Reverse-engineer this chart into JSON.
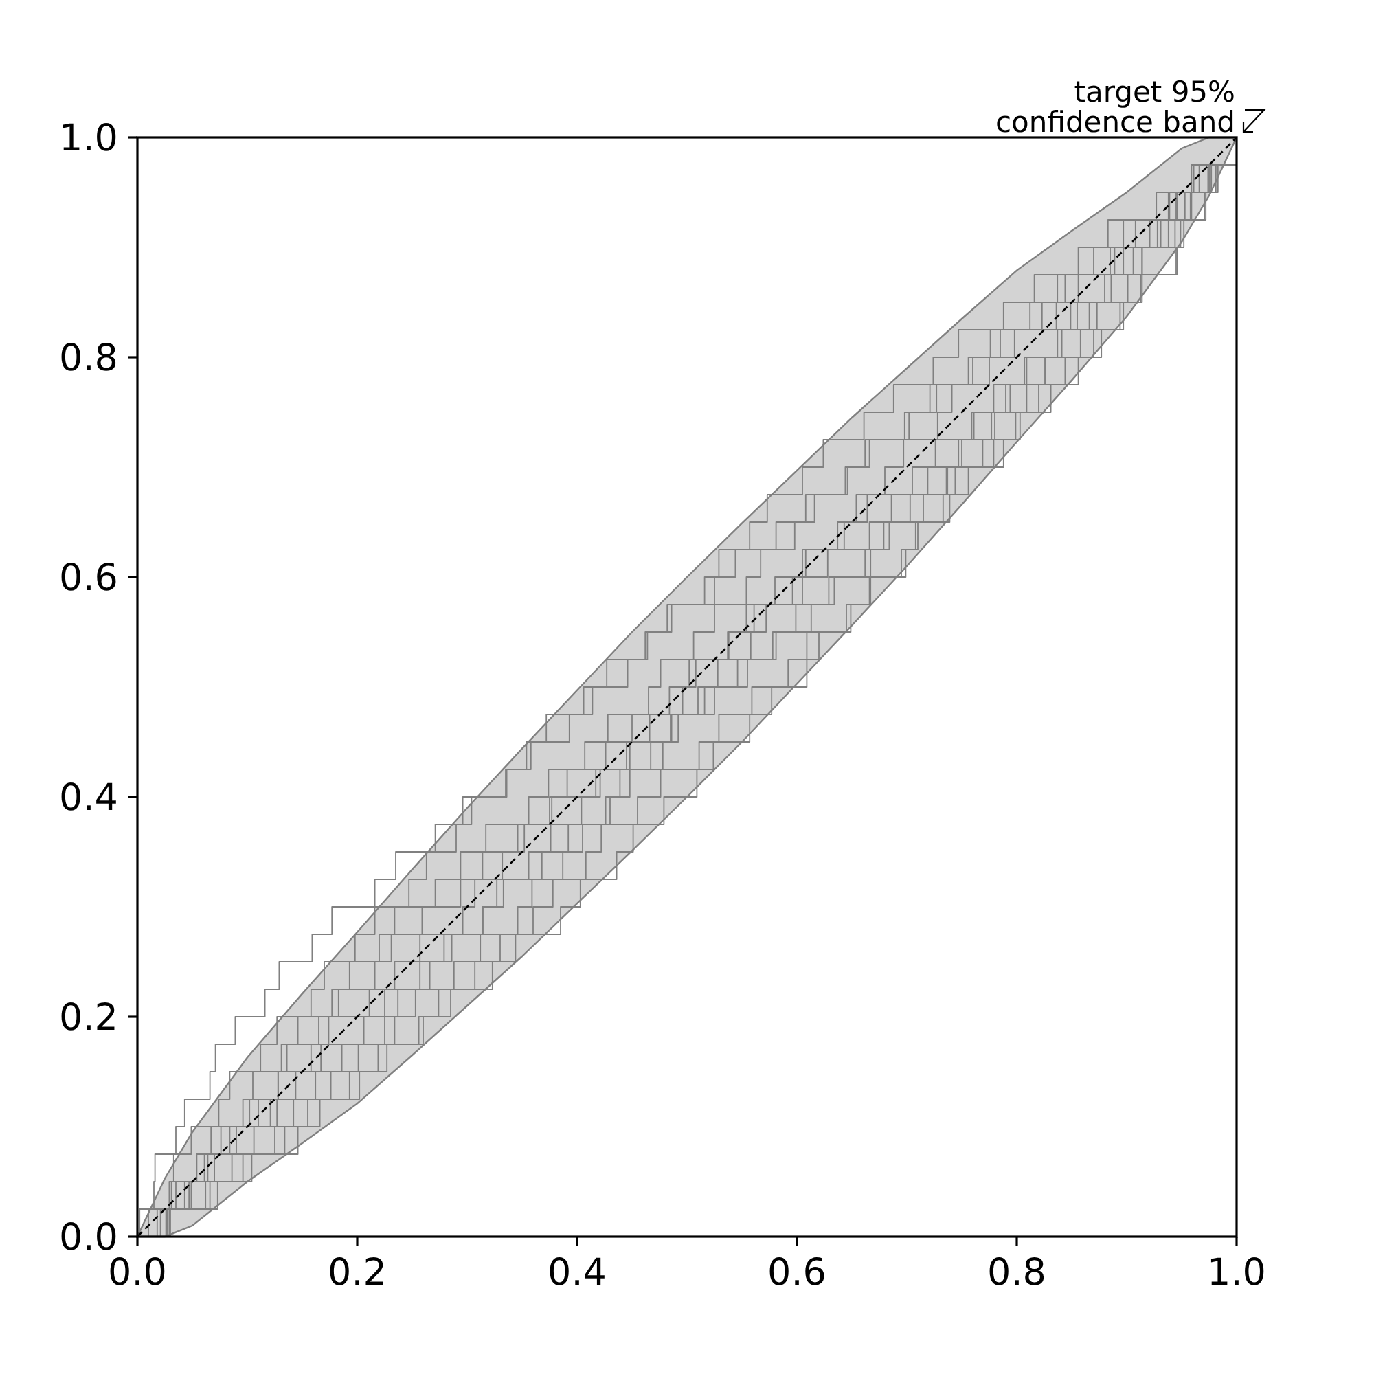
{
  "chart_data": {
    "type": "step",
    "xlim": [
      0,
      1
    ],
    "ylim": [
      0,
      1
    ],
    "xticks": [
      {
        "value": 0,
        "label": "0.0"
      },
      0.2,
      0.4,
      0.6,
      0.8,
      {
        "value": 1,
        "label": "1.0"
      }
    ],
    "yticks": [
      {
        "value": 0,
        "label": "0.0"
      },
      0.2,
      0.4,
      0.6,
      0.8,
      {
        "value": 1,
        "label": "1.0"
      }
    ],
    "annotations": [
      {
        "text": "target 95%\nconfidence band",
        "x": 1,
        "y": 1
      }
    ],
    "series": [
      {
        "type": "line",
        "color": "#000000",
        "line_style": "dashed",
        "x": [
          0,
          0.025,
          0.05,
          0.1,
          0.15,
          0.2,
          0.25,
          0.3,
          0.35,
          0.4,
          0.45,
          0.5,
          0.55,
          0.6,
          0.65,
          0.7,
          0.75,
          0.8,
          0.85,
          0.9,
          0.95,
          0.975,
          1
        ],
        "values": [
          0,
          0.025,
          0.05,
          0.1,
          0.15,
          0.2,
          0.25,
          0.3,
          0.35,
          0.4,
          0.45,
          0.5,
          0.55,
          0.6,
          0.65,
          0.7,
          0.75,
          0.8,
          0.85,
          0.9,
          0.95,
          0.975,
          1
        ],
        "lower": [
          0,
          0,
          0.01,
          0.05,
          0.085,
          0.121,
          0.165,
          0.21,
          0.255,
          0.303,
          0.351,
          0.4,
          0.45,
          0.503,
          0.556,
          0.61,
          0.666,
          0.723,
          0.779,
          0.837,
          0.905,
          0.947,
          1
        ],
        "upper": [
          0,
          0.053,
          0.095,
          0.163,
          0.221,
          0.277,
          0.334,
          0.39,
          0.444,
          0.497,
          0.55,
          0.6,
          0.649,
          0.697,
          0.745,
          0.79,
          0.835,
          0.879,
          0.915,
          0.95,
          0.99,
          1,
          1
        ]
      },
      {
        "color": "#808080",
        "x": [
          0,
          0.002,
          0.015,
          0.016,
          0.035,
          0.043,
          0.066,
          0.071,
          0.089,
          0.116,
          0.129,
          0.159,
          0.177,
          0.216,
          0.235,
          0.271,
          0.296,
          0.335,
          0.358,
          0.393,
          0.414,
          0.446,
          0.464,
          0.482,
          0.516,
          0.529,
          0.557,
          0.573,
          0.605,
          0.624,
          0.661,
          0.688,
          0.724,
          0.747,
          0.788,
          0.816,
          0.856,
          0.883,
          0.927,
          0.959,
          1
        ],
        "values": [
          0,
          0.025,
          0.05,
          0.075,
          0.1,
          0.125,
          0.15,
          0.175,
          0.2,
          0.225,
          0.25,
          0.275,
          0.3,
          0.325,
          0.35,
          0.375,
          0.4,
          0.425,
          0.45,
          0.475,
          0.5,
          0.525,
          0.55,
          0.575,
          0.6,
          0.625,
          0.65,
          0.675,
          0.7,
          0.725,
          0.75,
          0.775,
          0.8,
          0.825,
          0.85,
          0.875,
          0.9,
          0.925,
          0.95,
          0.975,
          1
        ]
      },
      {
        "color": "#808080",
        "x": [
          0,
          0.01,
          0.031,
          0.033,
          0.049,
          0.074,
          0.084,
          0.112,
          0.127,
          0.158,
          0.17,
          0.198,
          0.216,
          0.247,
          0.263,
          0.29,
          0.304,
          0.336,
          0.354,
          0.372,
          0.406,
          0.427,
          0.462,
          0.486,
          0.525,
          0.544,
          0.581,
          0.608,
          0.644,
          0.662,
          0.698,
          0.721,
          0.756,
          0.776,
          0.812,
          0.837,
          0.87,
          0.897,
          0.938,
          0.961,
          1
        ],
        "values": [
          0,
          0.025,
          0.05,
          0.075,
          0.1,
          0.125,
          0.15,
          0.175,
          0.2,
          0.225,
          0.25,
          0.275,
          0.3,
          0.325,
          0.35,
          0.375,
          0.4,
          0.425,
          0.45,
          0.475,
          0.5,
          0.525,
          0.55,
          0.575,
          0.6,
          0.625,
          0.65,
          0.675,
          0.7,
          0.725,
          0.75,
          0.775,
          0.8,
          0.825,
          0.85,
          0.875,
          0.9,
          0.925,
          0.95,
          0.975,
          1
        ]
      },
      {
        "color": "#808080",
        "x": [
          0,
          0.021,
          0.029,
          0.054,
          0.067,
          0.096,
          0.105,
          0.131,
          0.146,
          0.177,
          0.193,
          0.22,
          0.234,
          0.271,
          0.294,
          0.317,
          0.356,
          0.374,
          0.407,
          0.428,
          0.465,
          0.476,
          0.506,
          0.525,
          0.554,
          0.567,
          0.598,
          0.616,
          0.646,
          0.666,
          0.702,
          0.727,
          0.76,
          0.785,
          0.823,
          0.844,
          0.885,
          0.908,
          0.946,
          0.966,
          1
        ],
        "values": [
          0,
          0.025,
          0.05,
          0.075,
          0.1,
          0.125,
          0.15,
          0.175,
          0.2,
          0.225,
          0.25,
          0.275,
          0.3,
          0.325,
          0.35,
          0.375,
          0.4,
          0.425,
          0.45,
          0.475,
          0.5,
          0.525,
          0.55,
          0.575,
          0.6,
          0.625,
          0.65,
          0.675,
          0.7,
          0.725,
          0.75,
          0.775,
          0.8,
          0.825,
          0.85,
          0.875,
          0.9,
          0.925,
          0.95,
          0.975,
          1
        ]
      },
      {
        "color": "#808080",
        "x": [
          0,
          0.026,
          0.035,
          0.061,
          0.076,
          0.11,
          0.128,
          0.158,
          0.174,
          0.211,
          0.234,
          0.257,
          0.296,
          0.307,
          0.332,
          0.346,
          0.375,
          0.391,
          0.426,
          0.45,
          0.484,
          0.502,
          0.538,
          0.561,
          0.596,
          0.608,
          0.637,
          0.654,
          0.68,
          0.697,
          0.728,
          0.741,
          0.775,
          0.798,
          0.836,
          0.856,
          0.889,
          0.921,
          0.939,
          0.974,
          1
        ],
        "values": [
          0,
          0.025,
          0.05,
          0.075,
          0.1,
          0.125,
          0.15,
          0.175,
          0.2,
          0.225,
          0.25,
          0.275,
          0.3,
          0.325,
          0.35,
          0.375,
          0.4,
          0.425,
          0.45,
          0.475,
          0.5,
          0.525,
          0.55,
          0.575,
          0.6,
          0.625,
          0.65,
          0.675,
          0.7,
          0.725,
          0.75,
          0.775,
          0.8,
          0.825,
          0.85,
          0.875,
          0.9,
          0.925,
          0.95,
          0.975,
          1
        ]
      },
      {
        "color": "#808080",
        "x": [
          0,
          0.027,
          0.043,
          0.07,
          0.084,
          0.121,
          0.144,
          0.167,
          0.206,
          0.225,
          0.257,
          0.279,
          0.315,
          0.327,
          0.356,
          0.376,
          0.404,
          0.417,
          0.448,
          0.466,
          0.496,
          0.508,
          0.537,
          0.554,
          0.58,
          0.605,
          0.643,
          0.664,
          0.705,
          0.726,
          0.761,
          0.779,
          0.809,
          0.837,
          0.849,
          0.88,
          0.897,
          0.931,
          0.945,
          0.976,
          1
        ],
        "values": [
          0,
          0.025,
          0.05,
          0.075,
          0.1,
          0.125,
          0.15,
          0.175,
          0.2,
          0.225,
          0.25,
          0.275,
          0.3,
          0.325,
          0.35,
          0.375,
          0.4,
          0.425,
          0.45,
          0.475,
          0.5,
          0.525,
          0.55,
          0.575,
          0.6,
          0.625,
          0.65,
          0.675,
          0.7,
          0.725,
          0.75,
          0.775,
          0.8,
          0.825,
          0.85,
          0.875,
          0.9,
          0.925,
          0.95,
          0.975,
          1
        ]
      },
      {
        "color": "#808080",
        "x": [
          0,
          0.029,
          0.049,
          0.07,
          0.106,
          0.127,
          0.162,
          0.186,
          0.225,
          0.237,
          0.266,
          0.286,
          0.314,
          0.333,
          0.368,
          0.392,
          0.426,
          0.439,
          0.467,
          0.485,
          0.51,
          0.528,
          0.558,
          0.572,
          0.605,
          0.628,
          0.666,
          0.686,
          0.719,
          0.747,
          0.759,
          0.79,
          0.807,
          0.841,
          0.855,
          0.886,
          0.906,
          0.938,
          0.953,
          0.981,
          1
        ],
        "values": [
          0,
          0.025,
          0.05,
          0.075,
          0.1,
          0.125,
          0.15,
          0.175,
          0.2,
          0.225,
          0.25,
          0.275,
          0.3,
          0.325,
          0.35,
          0.375,
          0.4,
          0.425,
          0.45,
          0.475,
          0.5,
          0.525,
          0.55,
          0.575,
          0.6,
          0.625,
          0.65,
          0.675,
          0.7,
          0.725,
          0.75,
          0.775,
          0.8,
          0.825,
          0.85,
          0.875,
          0.9,
          0.925,
          0.95,
          0.975,
          1
        ]
      },
      {
        "color": "#808080",
        "x": [
          0,
          0.027,
          0.062,
          0.086,
          0.125,
          0.142,
          0.176,
          0.201,
          0.234,
          0.253,
          0.288,
          0.312,
          0.346,
          0.359,
          0.387,
          0.405,
          0.43,
          0.448,
          0.478,
          0.492,
          0.525,
          0.546,
          0.581,
          0.599,
          0.629,
          0.662,
          0.679,
          0.715,
          0.737,
          0.769,
          0.78,
          0.809,
          0.826,
          0.858,
          0.873,
          0.901,
          0.914,
          0.944,
          0.959,
          0.975,
          1
        ],
        "values": [
          0,
          0.025,
          0.05,
          0.075,
          0.1,
          0.125,
          0.15,
          0.175,
          0.2,
          0.225,
          0.25,
          0.275,
          0.3,
          0.325,
          0.35,
          0.375,
          0.4,
          0.425,
          0.45,
          0.475,
          0.5,
          0.525,
          0.55,
          0.575,
          0.6,
          0.625,
          0.65,
          0.675,
          0.7,
          0.725,
          0.75,
          0.775,
          0.8,
          0.825,
          0.85,
          0.875,
          0.9,
          0.925,
          0.95,
          0.975,
          1
        ]
      },
      {
        "color": "#808080",
        "x": [
          0,
          0.027,
          0.066,
          0.096,
          0.134,
          0.155,
          0.193,
          0.219,
          0.256,
          0.274,
          0.307,
          0.33,
          0.36,
          0.378,
          0.408,
          0.422,
          0.455,
          0.476,
          0.511,
          0.529,
          0.559,
          0.592,
          0.609,
          0.645,
          0.667,
          0.699,
          0.71,
          0.739,
          0.756,
          0.788,
          0.803,
          0.831,
          0.844,
          0.877,
          0.894,
          0.913,
          0.946,
          0.952,
          0.972,
          0.981,
          1
        ],
        "values": [
          0,
          0.025,
          0.05,
          0.075,
          0.1,
          0.125,
          0.15,
          0.175,
          0.2,
          0.225,
          0.25,
          0.275,
          0.3,
          0.325,
          0.35,
          0.375,
          0.4,
          0.425,
          0.45,
          0.475,
          0.5,
          0.525,
          0.55,
          0.575,
          0.6,
          0.625,
          0.65,
          0.675,
          0.7,
          0.725,
          0.75,
          0.775,
          0.8,
          0.825,
          0.85,
          0.875,
          0.9,
          0.925,
          0.95,
          0.975,
          1
        ]
      },
      {
        "color": "#808080",
        "x": [
          0,
          0.03,
          0.073,
          0.104,
          0.146,
          0.166,
          0.202,
          0.227,
          0.26,
          0.285,
          0.323,
          0.344,
          0.385,
          0.403,
          0.436,
          0.451,
          0.479,
          0.509,
          0.524,
          0.557,
          0.577,
          0.609,
          0.62,
          0.649,
          0.666,
          0.695,
          0.708,
          0.733,
          0.744,
          0.779,
          0.799,
          0.82,
          0.856,
          0.87,
          0.897,
          0.914,
          0.945,
          0.949,
          0.971,
          0.983,
          1
        ],
        "values": [
          0,
          0.025,
          0.05,
          0.075,
          0.1,
          0.125,
          0.15,
          0.175,
          0.2,
          0.225,
          0.25,
          0.275,
          0.3,
          0.325,
          0.35,
          0.375,
          0.4,
          0.425,
          0.45,
          0.475,
          0.5,
          0.525,
          0.55,
          0.575,
          0.6,
          0.625,
          0.65,
          0.675,
          0.7,
          0.725,
          0.75,
          0.775,
          0.8,
          0.825,
          0.85,
          0.875,
          0.9,
          0.925,
          0.95,
          0.975,
          1
        ]
      },
      {
        "color": "#808080",
        "x": [
          0,
          0.018,
          0.047,
          0.064,
          0.09,
          0.102,
          0.128,
          0.136,
          0.165,
          0.183,
          0.216,
          0.231,
          0.259,
          0.294,
          0.314,
          0.352,
          0.377,
          0.421,
          0.445,
          0.486,
          0.516,
          0.555,
          0.578,
          0.613,
          0.634,
          0.667,
          0.684,
          0.703,
          0.736,
          0.75,
          0.777,
          0.794,
          0.825,
          0.837,
          0.866,
          0.886,
          0.914,
          0.928,
          0.958,
          0.977,
          1
        ],
        "values": [
          0,
          0.025,
          0.05,
          0.075,
          0.1,
          0.125,
          0.15,
          0.175,
          0.2,
          0.225,
          0.25,
          0.275,
          0.3,
          0.325,
          0.35,
          0.375,
          0.4,
          0.425,
          0.45,
          0.475,
          0.5,
          0.525,
          0.55,
          0.575,
          0.6,
          0.625,
          0.65,
          0.675,
          0.7,
          0.725,
          0.75,
          0.775,
          0.8,
          0.825,
          0.85,
          0.875,
          0.9,
          0.925,
          0.95,
          0.975,
          1
        ]
      }
    ]
  }
}
